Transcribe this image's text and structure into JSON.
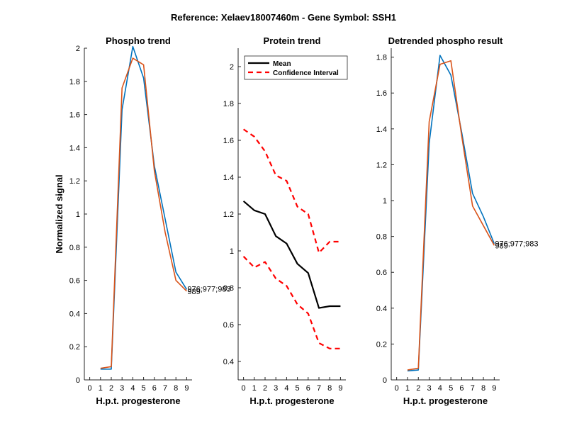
{
  "figure": {
    "suptitle": "Reference:  Xelaev18007460m - Gene Symbol:  SSH1"
  },
  "chart_data": [
    {
      "type": "line",
      "title": "Phospho trend",
      "xlabel": "H.p.t. progesterone",
      "ylabel": "Normalized signal",
      "x": [
        0,
        1,
        2,
        3,
        4,
        5,
        6,
        7,
        8,
        9
      ],
      "xlim": [
        -0.5,
        9.5
      ],
      "ylim": [
        0,
        2
      ],
      "yticks": [
        0,
        0.2,
        0.4,
        0.6,
        0.8,
        1,
        1.2,
        1.4,
        1.6,
        1.8,
        2
      ],
      "series": [
        {
          "name": "976;977;983",
          "color": "#0072bd",
          "x": [
            1,
            2,
            3,
            4,
            5,
            6,
            7,
            8,
            9
          ],
          "values": [
            0.065,
            0.065,
            1.63,
            2.01,
            1.82,
            1.29,
            0.97,
            0.65,
            0.545
          ]
        },
        {
          "name": "989",
          "color": "#d95319",
          "x": [
            1,
            2,
            3,
            4,
            5,
            6,
            7,
            8,
            9
          ],
          "values": [
            0.07,
            0.08,
            1.76,
            1.94,
            1.9,
            1.26,
            0.89,
            0.6,
            0.535
          ]
        }
      ],
      "annotations": [
        {
          "text": "976;977;983",
          "x": 9,
          "y": 0.55
        },
        {
          "text": "989",
          "x": 9,
          "y": 0.535
        }
      ]
    },
    {
      "type": "line",
      "title": "Protein trend",
      "xlabel": "H.p.t. progesterone",
      "ylabel": "",
      "x": [
        0,
        1,
        2,
        3,
        4,
        5,
        6,
        7,
        8,
        9
      ],
      "xlim": [
        -0.5,
        9.5
      ],
      "ylim": [
        0.3,
        2.1
      ],
      "yticks": [
        0.4,
        0.6,
        0.8,
        1,
        1.2,
        1.4,
        1.6,
        1.8,
        2
      ],
      "legend": {
        "position": "top-left",
        "entries": [
          "Mean",
          "Confidence Interval"
        ]
      },
      "series": [
        {
          "name": "Mean",
          "color": "#000000",
          "style": "solid",
          "x": [
            0,
            1,
            2,
            3,
            4,
            5,
            6,
            7,
            8,
            9
          ],
          "values": [
            1.27,
            1.22,
            1.2,
            1.08,
            1.04,
            0.93,
            0.88,
            0.69,
            0.7,
            0.7
          ]
        },
        {
          "name": "Confidence Interval",
          "color": "#ff0000",
          "style": "dashed",
          "x": [
            0,
            1,
            2,
            3,
            4,
            5,
            6,
            7,
            8,
            9
          ],
          "values": [
            1.66,
            1.62,
            1.54,
            1.41,
            1.38,
            1.24,
            1.2,
            0.99,
            1.05,
            1.05
          ]
        },
        {
          "name": "Confidence Interval (lower)",
          "color": "#ff0000",
          "style": "dashed",
          "x": [
            0,
            1,
            2,
            3,
            4,
            5,
            6,
            7,
            8,
            9
          ],
          "values": [
            0.97,
            0.91,
            0.94,
            0.85,
            0.81,
            0.71,
            0.66,
            0.5,
            0.47,
            0.47
          ]
        }
      ]
    },
    {
      "type": "line",
      "title": "Detrended phospho result",
      "xlabel": "H.p.t. progesterone",
      "ylabel": "",
      "x": [
        0,
        1,
        2,
        3,
        4,
        5,
        6,
        7,
        8,
        9
      ],
      "xlim": [
        -0.5,
        9.5
      ],
      "ylim": [
        0,
        1.85
      ],
      "yticks": [
        0,
        0.2,
        0.4,
        0.6,
        0.8,
        1,
        1.2,
        1.4,
        1.6,
        1.8
      ],
      "series": [
        {
          "name": "976;977;983",
          "color": "#0072bd",
          "x": [
            1,
            2,
            3,
            4,
            5,
            6,
            7,
            8,
            9
          ],
          "values": [
            0.05,
            0.055,
            1.32,
            1.81,
            1.7,
            1.38,
            1.04,
            0.91,
            0.76
          ]
        },
        {
          "name": "989",
          "color": "#d95319",
          "x": [
            1,
            2,
            3,
            4,
            5,
            6,
            7,
            8,
            9
          ],
          "values": [
            0.055,
            0.065,
            1.44,
            1.76,
            1.78,
            1.36,
            0.97,
            0.86,
            0.75
          ]
        }
      ],
      "annotations": [
        {
          "text": "976;977;983",
          "x": 9,
          "y": 0.76
        },
        {
          "text": "989",
          "x": 9,
          "y": 0.75
        }
      ]
    }
  ]
}
